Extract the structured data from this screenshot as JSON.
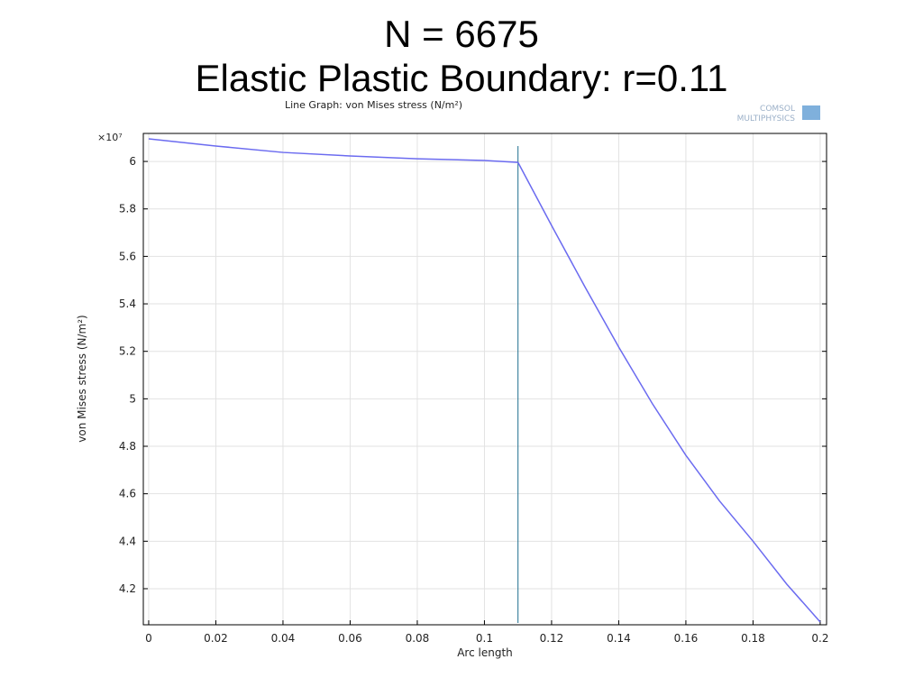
{
  "slide_title": [
    "N = 6675",
    "Elastic Plastic Boundary: r=0.11"
  ],
  "logo": [
    "COMSOL",
    "MULTIPHYSICS"
  ],
  "chart_data": {
    "type": "line",
    "title": "Line Graph: von Mises stress (N/m²)",
    "x_label": "Arc length",
    "y_label": "von Mises stress (N/m²)",
    "y_multiplier": "×10⁷",
    "x": [
      0,
      0.02,
      0.04,
      0.06,
      0.08,
      0.1,
      0.11,
      0.12,
      0.13,
      0.14,
      0.15,
      0.16,
      0.17,
      0.18,
      0.19,
      0.2
    ],
    "series": [
      {
        "color": "#6b6bf0",
        "values": [
          6.095,
          6.065,
          6.038,
          6.023,
          6.011,
          6.004,
          5.996,
          5.73,
          5.47,
          5.218,
          4.98,
          4.762,
          4.57,
          4.4,
          4.22,
          4.06
        ]
      }
    ],
    "boundary_x": 0.11,
    "boundary_color": "#1f6f8f",
    "xlim": [
      -0.0016,
      0.2019
    ],
    "ylim": [
      4.048,
      6.118
    ],
    "xticks": [
      0,
      0.02,
      0.04,
      0.06,
      0.08,
      0.1,
      0.12,
      0.14,
      0.16,
      0.18,
      0.2
    ],
    "yticks": [
      4.2,
      4.4,
      4.6,
      4.8,
      5,
      5.2,
      5.4,
      5.6,
      5.8,
      6
    ],
    "grid": true
  }
}
